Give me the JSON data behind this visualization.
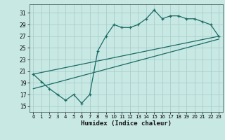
{
  "xlabel": "Humidex (Indice chaleur)",
  "xlim": [
    -0.5,
    23.5
  ],
  "ylim": [
    14.0,
    32.5
  ],
  "xticks": [
    0,
    1,
    2,
    3,
    4,
    5,
    6,
    7,
    8,
    9,
    10,
    11,
    12,
    13,
    14,
    15,
    16,
    17,
    18,
    19,
    20,
    21,
    22,
    23
  ],
  "yticks": [
    15,
    17,
    19,
    21,
    23,
    25,
    27,
    29,
    31
  ],
  "bg_color": "#c8e8e4",
  "grid_color": "#a8d0cc",
  "line_color": "#1a6b64",
  "line1_x": [
    0,
    1,
    2,
    3,
    4,
    5,
    6,
    7,
    8,
    9,
    10,
    11,
    12,
    13,
    14,
    15,
    16,
    17,
    18,
    19,
    20,
    21,
    22,
    23
  ],
  "line1_y": [
    20.5,
    19.2,
    18.0,
    17.0,
    16.0,
    17.0,
    15.5,
    17.0,
    24.5,
    27.0,
    29.0,
    28.5,
    28.5,
    29.0,
    30.0,
    31.5,
    30.0,
    30.5,
    30.5,
    30.0,
    30.0,
    29.5,
    29.0,
    27.0
  ],
  "line2_x": [
    0,
    23
  ],
  "line2_y": [
    18.0,
    26.5
  ],
  "line3_x": [
    0,
    23
  ],
  "line3_y": [
    20.5,
    27.0
  ],
  "figsize": [
    3.2,
    2.0
  ],
  "dpi": 100
}
